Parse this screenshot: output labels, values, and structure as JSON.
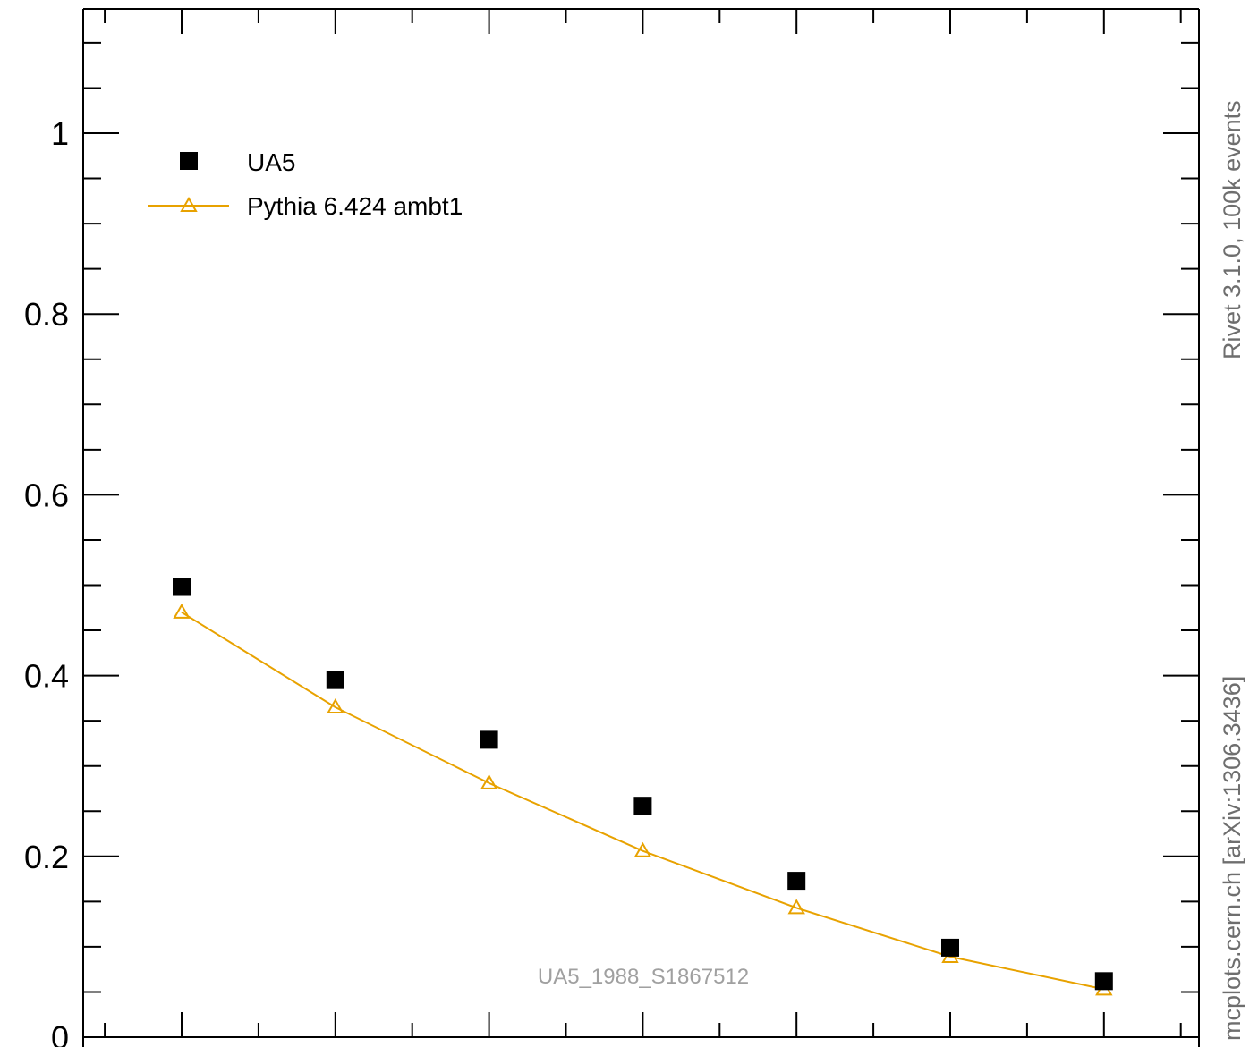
{
  "chart_data": {
    "type": "scatter",
    "title": "",
    "xlabel": "",
    "ylabel": "",
    "x": [
      1,
      2,
      3,
      4,
      5,
      6,
      7
    ],
    "ylim": [
      0,
      1.14
    ],
    "y_ticks": [
      "0",
      "0.2",
      "0.4",
      "0.6",
      "0.8",
      "1"
    ],
    "series": [
      {
        "name": "UA5",
        "marker": "filled-square",
        "color": "#000000",
        "values": [
          0.498,
          0.395,
          0.329,
          0.256,
          0.173,
          0.099,
          0.062
        ]
      },
      {
        "name": "Pythia 6.424 ambt1",
        "marker": "open-triangle-line",
        "color": "#e8a200",
        "values": [
          0.47,
          0.365,
          0.281,
          0.206,
          0.143,
          0.089,
          0.053
        ]
      }
    ],
    "annotation": "UA5_1988_S1867512",
    "side_labels": {
      "top": "Rivet 3.1.0,  100k events",
      "bottom": "mcplots.cern.ch [arXiv:1306.3436]"
    },
    "legend_position": "top-left"
  }
}
